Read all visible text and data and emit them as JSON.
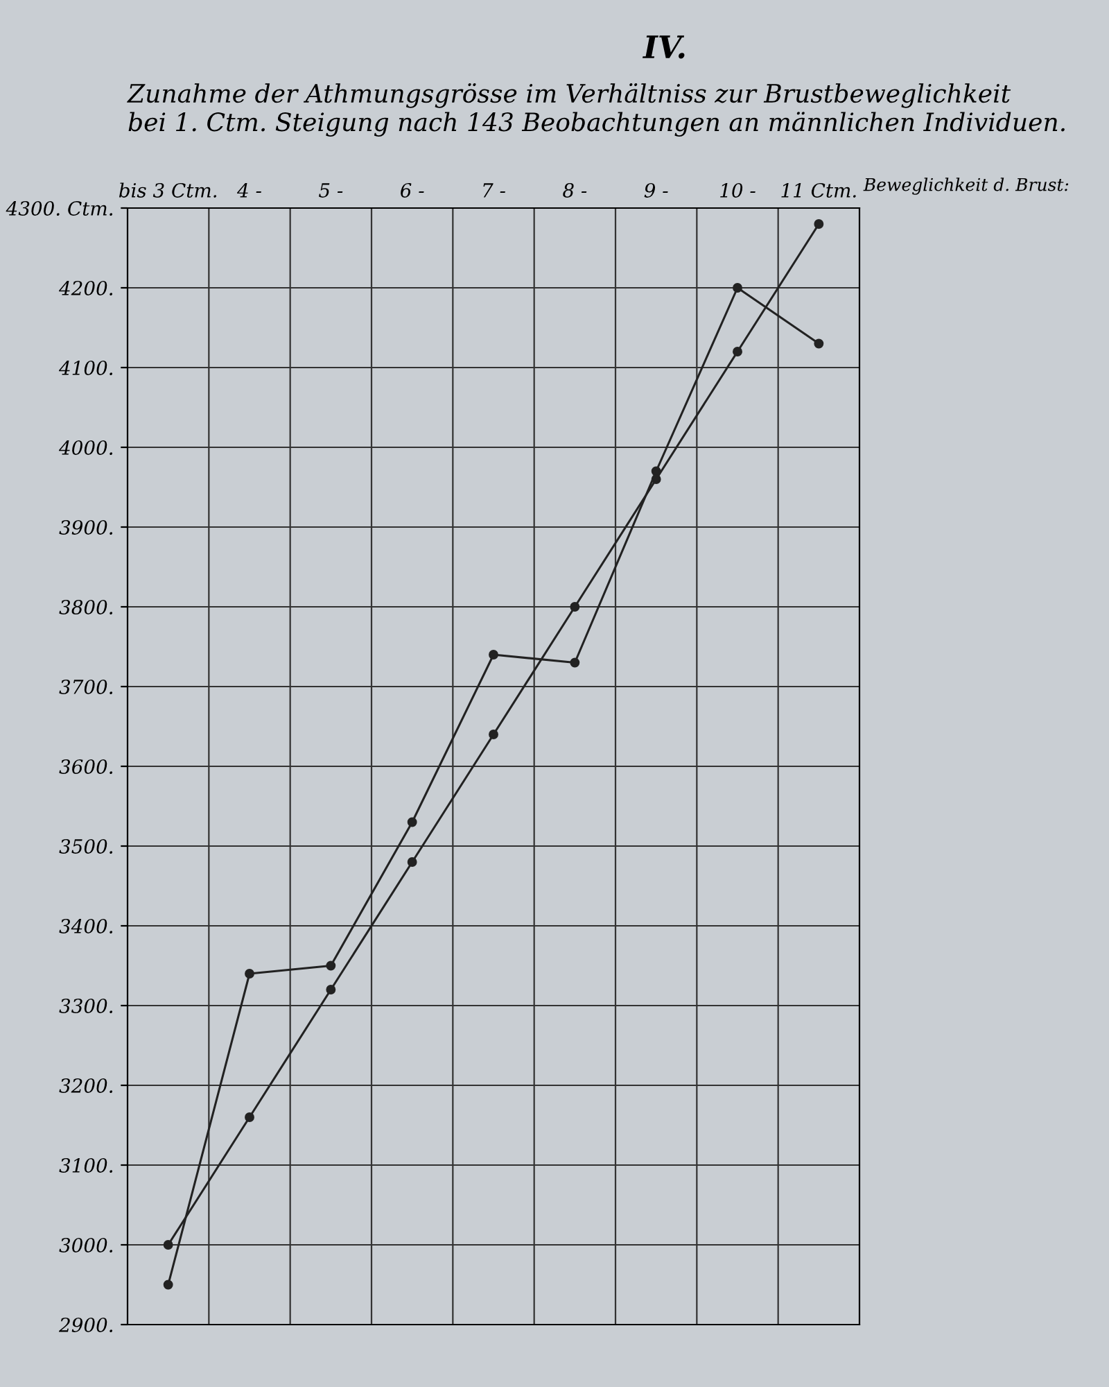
{
  "chart_data": {
    "type": "line",
    "title": "Zunahme der Athmungsgrösse im Verhältniss zur Brustbeweglichkeit\nbei 1. Ctm. Steigung nach 143 Beobachtungen an männlichen Individuen.",
    "xlabel": "Beweglichkeit d. Brust:",
    "annotations": [
      "IV."
    ],
    "categories": [
      "bis 3 Ctm.",
      "4 -",
      "5 -",
      "6 -",
      "7 -",
      "8 -",
      "9 -",
      "10 -",
      "11 Ctm."
    ],
    "series": [
      {
        "color": "#222222",
        "values": [
          2950,
          3340,
          3350,
          3530,
          3740,
          3730,
          3970,
          4200,
          4130
        ]
      },
      {
        "color": "#222222",
        "values": [
          3000,
          3160,
          3320,
          3480,
          3640,
          3800,
          3960,
          4120,
          4280
        ]
      }
    ],
    "ylim": [
      2900,
      4300
    ],
    "yticks": [
      {
        "value": 2900,
        "label": "2900."
      },
      {
        "value": 3000,
        "label": "3000."
      },
      {
        "value": 3100,
        "label": "3100."
      },
      {
        "value": 3200,
        "label": "3200."
      },
      {
        "value": 3300,
        "label": "3300."
      },
      {
        "value": 3400,
        "label": "3400."
      },
      {
        "value": 3500,
        "label": "3500."
      },
      {
        "value": 3600,
        "label": "3600."
      },
      {
        "value": 3700,
        "label": "3700."
      },
      {
        "value": 3800,
        "label": "3800."
      },
      {
        "value": 3900,
        "label": "3900."
      },
      {
        "value": 4000,
        "label": "4000."
      },
      {
        "value": 4100,
        "label": "4100."
      },
      {
        "value": 4200,
        "label": "4200."
      },
      {
        "value": 4300,
        "label": "4300. Ctm."
      }
    ],
    "grid": true,
    "marker": "circle",
    "line_style": "solid"
  }
}
